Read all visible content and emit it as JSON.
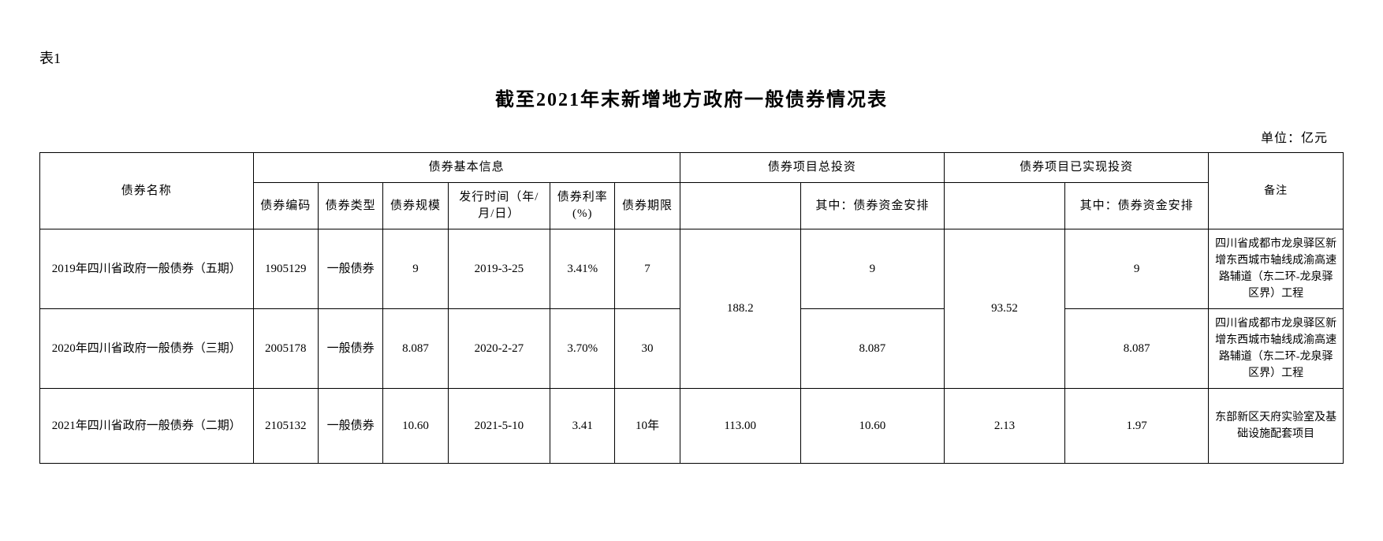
{
  "table_label": "表1",
  "title": "截至2021年末新增地方政府一般债券情况表",
  "unit": "单位：亿元",
  "headers": {
    "bond_name": "债券名称",
    "basic_info": "债券基本信息",
    "bond_code": "债券编码",
    "bond_type": "债券类型",
    "bond_scale": "债券规模",
    "issue_date": "发行时间（年/月/日）",
    "rate": "债券利率(%)",
    "term": "债券期限",
    "total_invest": "债券项目总投资",
    "fund_arrange": "其中：债券资金安排",
    "realized_invest": "债券项目已实现投资",
    "realized_fund": "其中：债券资金安排",
    "notes": "备注"
  },
  "rows": [
    {
      "bond_name": "2019年四川省政府一般债券（五期）",
      "bond_code": "1905129",
      "bond_type": "一般债券",
      "bond_scale": "9",
      "issue_date": "2019-3-25",
      "rate": "3.41%",
      "term": "7",
      "fund_arrange": "9",
      "realized_fund": "9",
      "notes": "四川省成都市龙泉驿区新增东西城市轴线成渝高速路辅道（东二环-龙泉驿区界）工程"
    },
    {
      "bond_name": "2020年四川省政府一般债券（三期）",
      "bond_code": "2005178",
      "bond_type": "一般债券",
      "bond_scale": "8.087",
      "issue_date": "2020-2-27",
      "rate": "3.70%",
      "term": "30",
      "fund_arrange": "8.087",
      "realized_fund": "8.087",
      "notes": "四川省成都市龙泉驿区新增东西城市轴线成渝高速路辅道（东二环-龙泉驿区界）工程"
    },
    {
      "bond_name": "2021年四川省政府一般债券（二期）",
      "bond_code": "2105132",
      "bond_type": "一般债券",
      "bond_scale": "10.60",
      "issue_date": "2021-5-10",
      "rate": "3.41",
      "term": "10年",
      "total_invest": "113.00",
      "fund_arrange": "10.60",
      "realized_invest": "2.13",
      "realized_fund": "1.97",
      "notes": "东部新区天府实验室及基础设施配套项目"
    }
  ],
  "merged": {
    "total_invest_12": "188.2",
    "realized_invest_12": "93.52"
  },
  "style": {
    "background_color": "#ffffff",
    "text_color": "#000000",
    "border_color": "#000000",
    "title_fontsize": 24,
    "body_fontsize": 15,
    "label_fontsize": 18
  }
}
